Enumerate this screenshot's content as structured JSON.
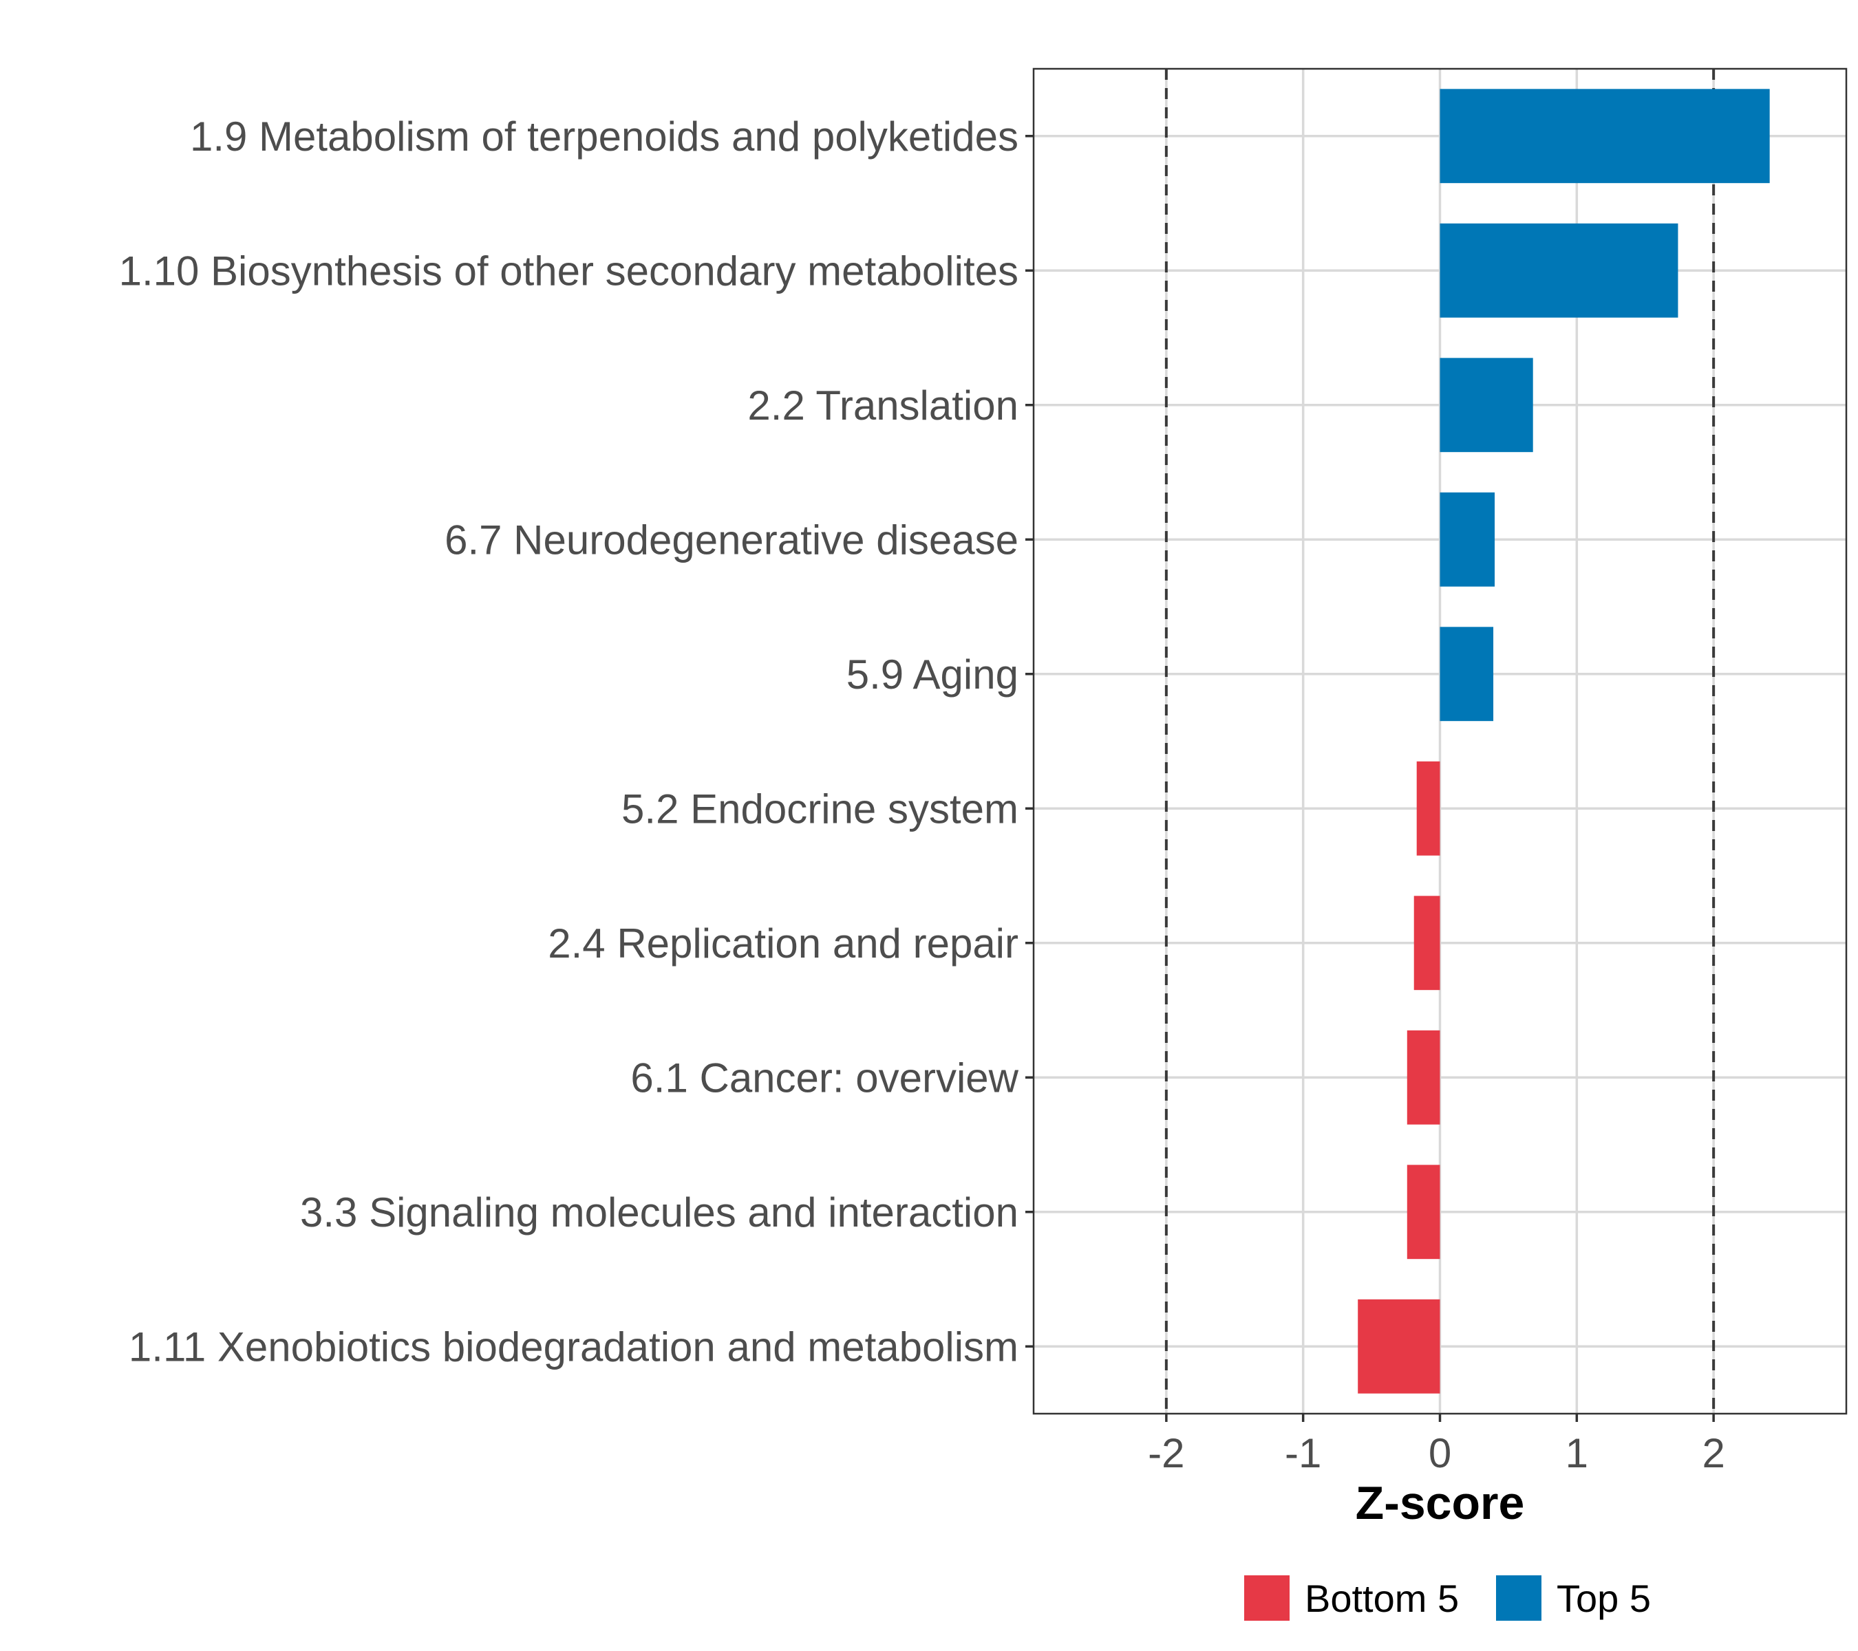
{
  "chart_data": {
    "type": "bar",
    "orientation": "horizontal",
    "title": "",
    "xlabel": "Z-score",
    "ylabel": "",
    "xlim": [
      -2.97,
      2.97
    ],
    "xticks": [
      -2,
      -1,
      0,
      1,
      2
    ],
    "xtick_labels": [
      "-2",
      "-1",
      "0",
      "1",
      "2"
    ],
    "reference_lines": [
      -2,
      2
    ],
    "grid": true,
    "categories": [
      "1.9 Metabolism of terpenoids and polyketides",
      "1.10 Biosynthesis of other secondary metabolites",
      "2.2 Translation",
      "6.7 Neurodegenerative disease",
      "5.9 Aging",
      "5.2 Endocrine system",
      "2.4 Replication and repair",
      "6.1 Cancer: overview",
      "3.3 Signaling molecules and interaction",
      "1.11 Xenobiotics biodegradation and metabolism"
    ],
    "values": [
      2.41,
      1.74,
      0.68,
      0.4,
      0.39,
      -0.17,
      -0.19,
      -0.24,
      -0.24,
      -0.6
    ],
    "groups": [
      "Top 5",
      "Top 5",
      "Top 5",
      "Top 5",
      "Top 5",
      "Bottom 5",
      "Bottom 5",
      "Bottom 5",
      "Bottom 5",
      "Bottom 5"
    ],
    "legend": [
      {
        "label": "Bottom 5",
        "color": "#e63946"
      },
      {
        "label": "Top 5",
        "color": "#0077b6"
      }
    ],
    "legend_position": "bottom",
    "colors": {
      "Top 5": "#0077b6",
      "Bottom 5": "#e63946"
    }
  }
}
